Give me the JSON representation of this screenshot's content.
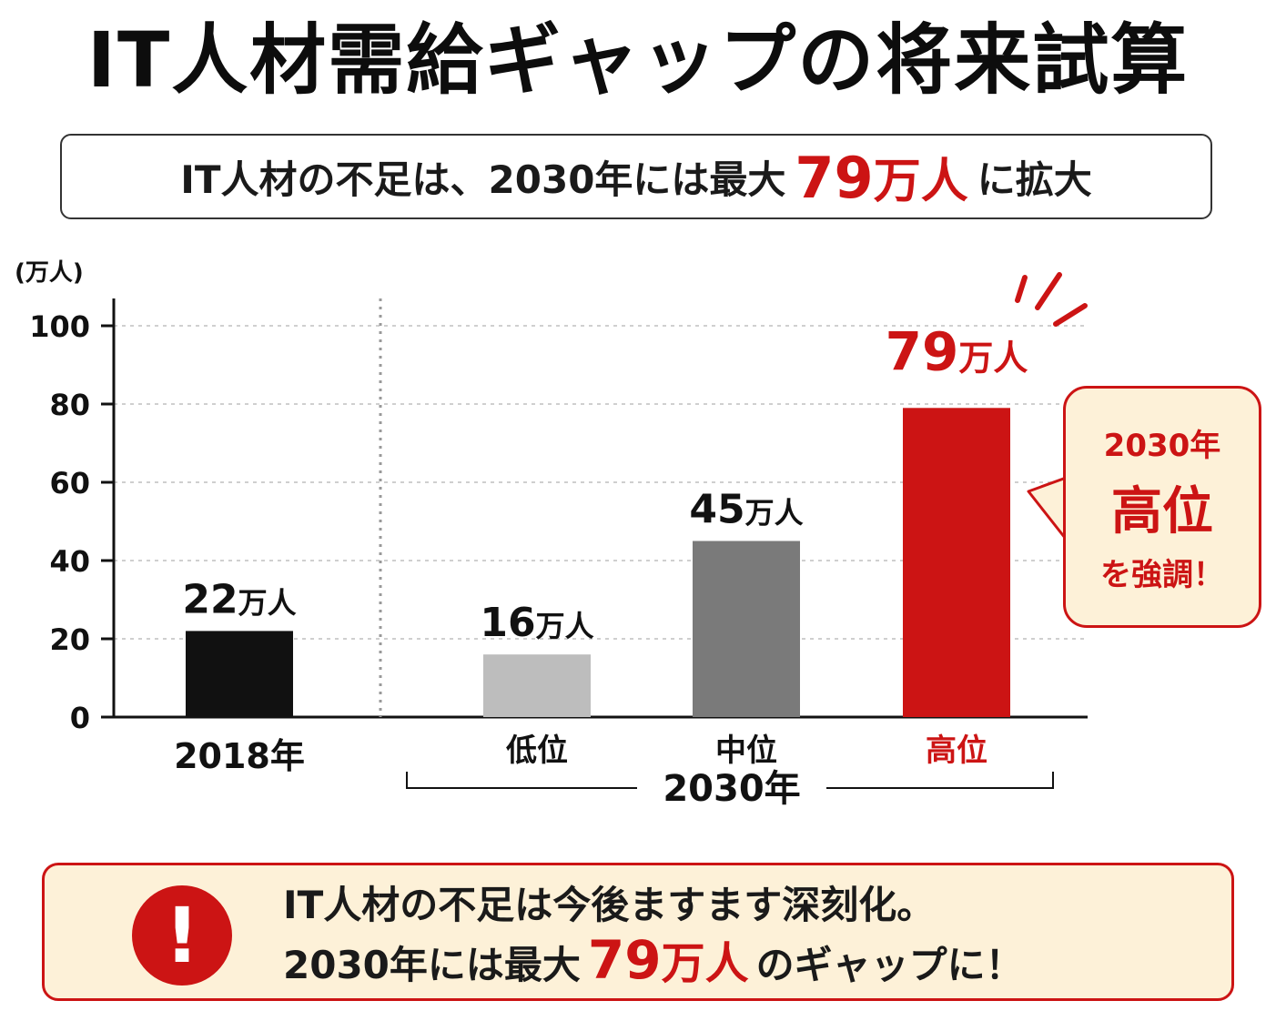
{
  "title": "IT人材需給ギャップの将来試算",
  "summary": {
    "prefix": "IT人材の不足は、2030年には最大",
    "highlight_number": "79",
    "highlight_unit": "万人",
    "suffix": "に拡大"
  },
  "chart_data": {
    "type": "bar",
    "unit_label": "(万人)",
    "ylim": [
      0,
      100
    ],
    "yticks": [
      0,
      20,
      40,
      60,
      80,
      100
    ],
    "grid": true,
    "categories": [
      "2018年",
      "低位",
      "中位",
      "高位"
    ],
    "values": [
      22,
      16,
      45,
      79
    ],
    "bar_value_numbers": [
      "22",
      "16",
      "45",
      "79"
    ],
    "bar_value_unit": "万人",
    "bar_colors": [
      "#111111",
      "#bdbdbd",
      "#7a7a7a",
      "#cc1414"
    ],
    "group_label": "2030年",
    "highlight_index": 3
  },
  "callout": {
    "line1": "2030年",
    "line2": "高位",
    "line3": "を強調！"
  },
  "note": {
    "line1": "IT人材の不足は今後ますます深刻化。",
    "line2_prefix": "2030年には最大",
    "line2_number": "79",
    "line2_unit": "万人",
    "line2_suffix": "のギャップに！",
    "icon": "exclamation-icon"
  },
  "colors": {
    "accent": "#cc1414",
    "note_bg": "#fdf1d8"
  }
}
